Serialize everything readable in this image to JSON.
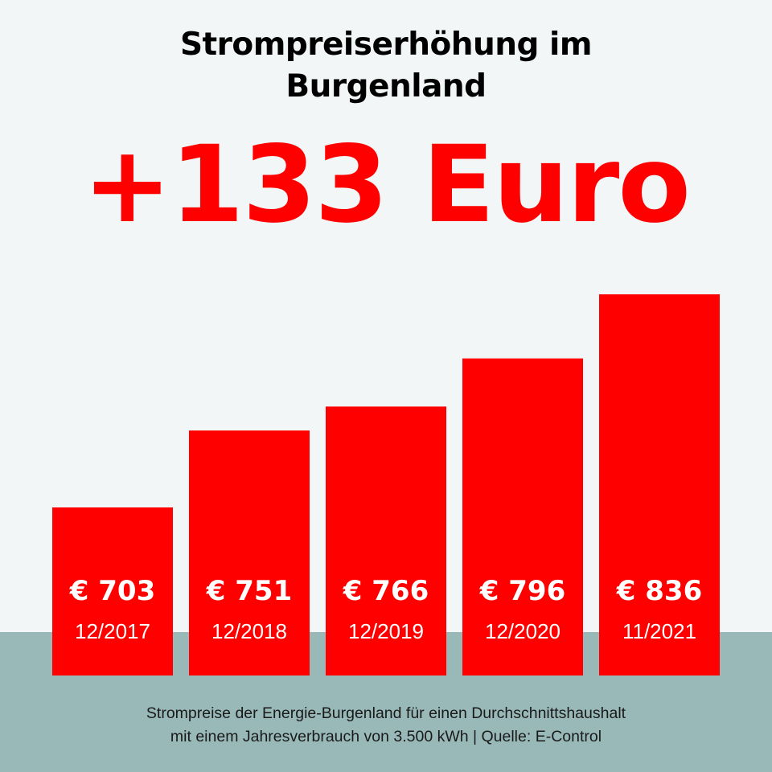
{
  "title_line1": "Strompreiserhöhung im",
  "title_line2": "Burgenland",
  "headline": "+133 Euro",
  "colors": {
    "bar": "#ff0000",
    "background": "#f3f6f7",
    "floor": "#98b9b8",
    "text_on_bar": "#ffffff"
  },
  "footnote_line1": "Strompreise der Energie-Burgenland für einen Durchschnittshaushalt",
  "footnote_line2": "mit einem Jahresverbrauch von 3.500 kWh | Quelle: E-Control",
  "chart_data": {
    "type": "bar",
    "title": "Strompreiserhöhung im Burgenland",
    "categories": [
      "12/2017",
      "12/2018",
      "12/2019",
      "12/2020",
      "11/2021"
    ],
    "values": [
      703,
      751,
      766,
      796,
      836
    ],
    "value_labels": [
      "€ 703",
      "€ 751",
      "€ 766",
      "€ 796",
      "€ 836"
    ],
    "unit": "€",
    "xlabel": "",
    "ylabel": "",
    "grid": false,
    "legend": "none"
  }
}
